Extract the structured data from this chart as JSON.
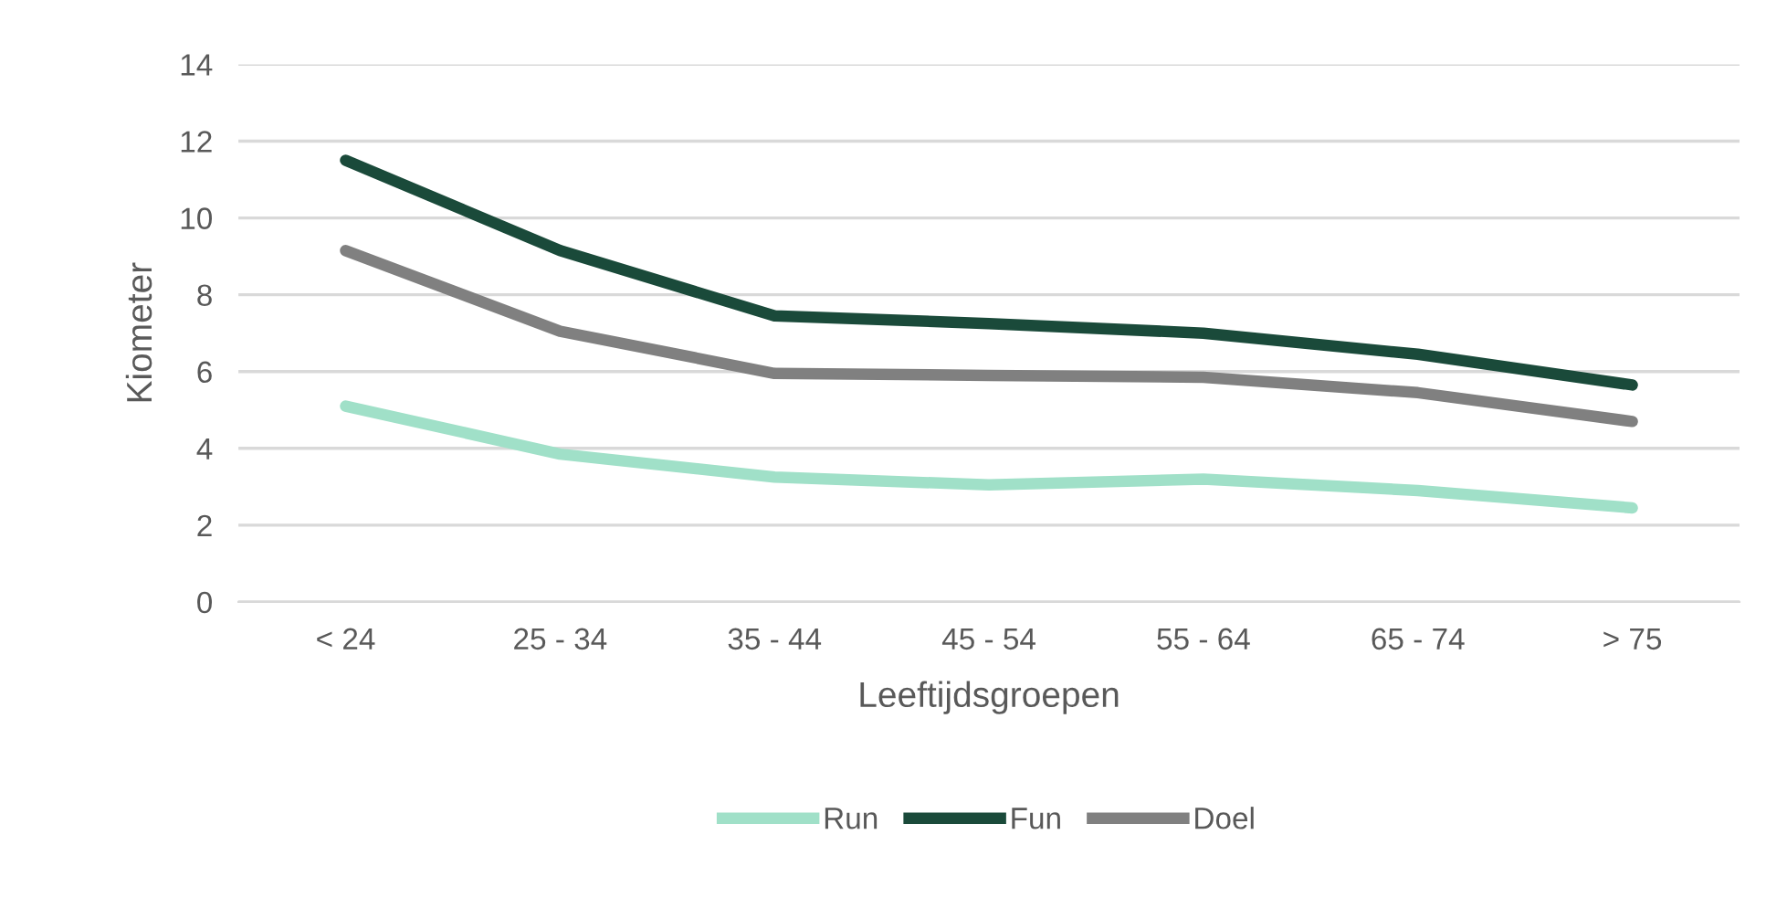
{
  "chart_data": {
    "type": "line",
    "xlabel": "Leeftijdsgroepen",
    "ylabel": "Kiometer",
    "categories": [
      "< 24",
      "25 - 34",
      "35 - 44",
      "45 - 54",
      "55 - 64",
      "65 - 74",
      "> 75"
    ],
    "series": [
      {
        "name": "Run",
        "color": "#a0e0c8",
        "values": [
          5.1,
          3.85,
          3.25,
          3.05,
          3.2,
          2.9,
          2.45
        ]
      },
      {
        "name": "Fun",
        "color": "#1a4a3a",
        "values": [
          11.5,
          9.15,
          7.45,
          7.25,
          7.0,
          6.45,
          5.65
        ]
      },
      {
        "name": "Doel",
        "color": "#808080",
        "values": [
          9.15,
          7.05,
          5.95,
          5.9,
          5.85,
          5.45,
          4.7
        ]
      }
    ],
    "ylim": [
      0,
      14
    ],
    "yticks": [
      0,
      2,
      4,
      6,
      8,
      10,
      12,
      14
    ],
    "grid": "y",
    "legend": "bottom",
    "marker": "none",
    "line_style": "solid"
  }
}
